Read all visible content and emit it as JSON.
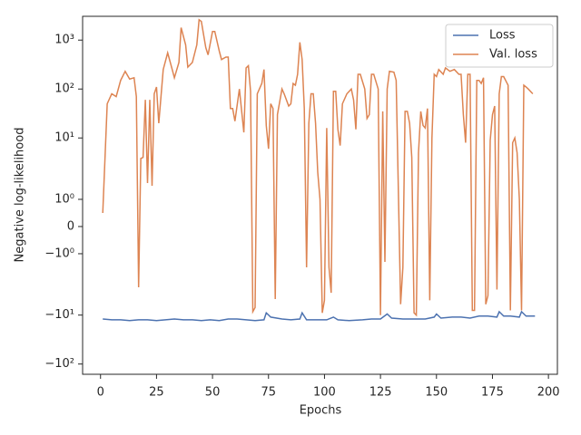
{
  "chart_data": {
    "type": "line",
    "xlabel": "Epochs",
    "ylabel": "Negative log-likelihood",
    "yscale": "symlog",
    "linthresh": 2,
    "linscale": 1,
    "xlim": [
      -8,
      204
    ],
    "ylim": [
      -162,
      3062
    ],
    "xticks": [
      0,
      25,
      50,
      75,
      100,
      125,
      150,
      175,
      200
    ],
    "yticks": [
      {
        "value": -100,
        "label": "−10²"
      },
      {
        "value": -10,
        "label": "−10¹"
      },
      {
        "value": -1,
        "label": "−10⁰"
      },
      0,
      {
        "value": 1,
        "label": "10⁰"
      },
      {
        "value": 10,
        "label": "10¹"
      },
      {
        "value": 100,
        "label": "10²"
      },
      {
        "value": 1000,
        "label": "10³"
      }
    ],
    "legend": "upper right",
    "series": [
      {
        "name": "Loss",
        "color": "#4c72b0",
        "x": [
          1,
          5,
          9,
          13,
          17,
          21,
          25,
          29,
          33,
          37,
          41,
          45,
          49,
          53,
          57,
          61,
          65,
          69,
          73,
          74,
          76,
          81,
          85,
          89,
          90,
          92,
          97,
          101,
          104,
          106,
          111,
          117,
          121,
          125,
          128,
          130,
          135,
          141,
          145,
          149,
          150,
          152,
          157,
          161,
          165,
          169,
          173,
          177,
          178,
          180,
          183,
          187,
          188,
          190,
          194
        ],
        "values": [
          -12,
          -12.5,
          -12.5,
          -13,
          -12.5,
          -12.5,
          -13,
          -12.5,
          -12,
          -12.5,
          -12.5,
          -13,
          -12.5,
          -13,
          -12,
          -12,
          -12.5,
          -13,
          -12.5,
          -9,
          -11,
          -12,
          -12.5,
          -12,
          -9,
          -12.5,
          -12.5,
          -12.5,
          -11,
          -12.5,
          -13,
          -12.5,
          -12,
          -12,
          -9.5,
          -11.5,
          -12,
          -12,
          -12,
          -11,
          -9.5,
          -11.5,
          -11,
          -11,
          -11.5,
          -10.5,
          -10.5,
          -11,
          -8.5,
          -10.5,
          -10.5,
          -11,
          -8.5,
          -10.5,
          -10.5
        ]
      },
      {
        "name": "Val. loss",
        "color": "#dd8452",
        "x": [
          1,
          3,
          5,
          7,
          9,
          11,
          13,
          15,
          16,
          17,
          18,
          19,
          20,
          21,
          22,
          23,
          24,
          25,
          26,
          28,
          30,
          32,
          33,
          35,
          36,
          38,
          39,
          41,
          43,
          44,
          45,
          47,
          48,
          50,
          51,
          53,
          54,
          56,
          57,
          58,
          59,
          60,
          62,
          64,
          65,
          66,
          67,
          68,
          69,
          70,
          72,
          73,
          74,
          75,
          76,
          77,
          78,
          79,
          81,
          82,
          84,
          85,
          86,
          87,
          88,
          89,
          90,
          91,
          92,
          93,
          94,
          95,
          96,
          97,
          98,
          99,
          100,
          101,
          102,
          103,
          104,
          105,
          106,
          107,
          108,
          110,
          112,
          113,
          114,
          115,
          116,
          118,
          119,
          120,
          121,
          122,
          124,
          125,
          126,
          127,
          128,
          129,
          131,
          132,
          134,
          135,
          136,
          137,
          138,
          139,
          140,
          141,
          142,
          143,
          144,
          145,
          146,
          147,
          148,
          149,
          150,
          151,
          153,
          154,
          156,
          158,
          160,
          161,
          162,
          163,
          164,
          165,
          166,
          167,
          168,
          169,
          170,
          171,
          172,
          173,
          174,
          175,
          176,
          177,
          178,
          179,
          180,
          182,
          183,
          184,
          185,
          186,
          187,
          188,
          189,
          190,
          191,
          193
        ],
        "values": [
          0.5,
          50,
          80,
          70,
          150,
          230,
          160,
          170,
          70,
          -2.7,
          3.8,
          4,
          60,
          1.6,
          60,
          1.5,
          80,
          110,
          20,
          250,
          550,
          250,
          170,
          350,
          1800,
          800,
          280,
          350,
          800,
          2600,
          2400,
          700,
          500,
          1500,
          1500,
          600,
          400,
          450,
          450,
          40,
          40,
          22,
          100,
          13,
          270,
          300,
          90,
          -8.5,
          -7,
          80,
          130,
          250,
          18,
          6,
          50,
          40,
          -4.7,
          30,
          100,
          80,
          45,
          50,
          130,
          120,
          200,
          900,
          400,
          40,
          -1.5,
          20,
          80,
          80,
          20,
          2,
          1,
          -9,
          -5,
          16,
          -1.5,
          -3.5,
          90,
          90,
          15,
          7,
          50,
          80,
          100,
          60,
          15,
          200,
          200,
          100,
          25,
          30,
          200,
          200,
          100,
          -10,
          35,
          -1.3,
          100,
          230,
          220,
          150,
          -6,
          -1.5,
          35,
          35,
          20,
          4,
          -9,
          -10,
          5,
          35,
          18,
          16,
          40,
          -5,
          10,
          200,
          180,
          250,
          200,
          270,
          230,
          250,
          200,
          200,
          30,
          8,
          200,
          200,
          -8,
          -8,
          150,
          150,
          130,
          170,
          -6,
          -4,
          9,
          30,
          45,
          -3,
          80,
          180,
          180,
          120,
          -8,
          8,
          10,
          5,
          1,
          -8,
          120,
          110,
          100,
          80
        ]
      }
    ]
  }
}
